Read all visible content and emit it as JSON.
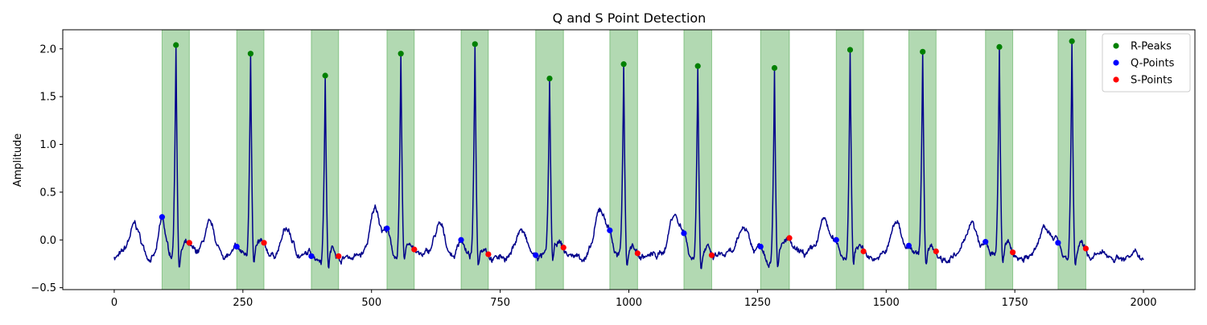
{
  "chart_data": {
    "type": "line",
    "title": "Q and S Point Detection",
    "xlabel": "",
    "ylabel": "Amplitude",
    "xlim": [
      -100,
      2100
    ],
    "ylim": [
      -0.52,
      2.2
    ],
    "x_ticks": [
      0,
      250,
      500,
      750,
      1000,
      1250,
      1500,
      1750,
      2000
    ],
    "y_ticks": [
      -0.5,
      0.0,
      0.5,
      1.0,
      1.5,
      2.0
    ],
    "y_tick_labels": [
      "−0.5",
      "0.0",
      "0.5",
      "1.0",
      "1.5",
      "2.0"
    ],
    "grid": false,
    "legend_position": "top-right",
    "colors": {
      "signal": "#00008b",
      "r_peaks": "#008000",
      "q_points": "#0000ff",
      "s_points": "#ff0000",
      "window": "#008000"
    },
    "highlight_windows": [
      [
        93,
        146
      ],
      [
        238,
        291
      ],
      [
        383,
        436
      ],
      [
        530,
        583
      ],
      [
        674,
        727
      ],
      [
        819,
        873
      ],
      [
        963,
        1017
      ],
      [
        1107,
        1161
      ],
      [
        1256,
        1312
      ],
      [
        1403,
        1456
      ],
      [
        1544,
        1597
      ],
      [
        1693,
        1746
      ],
      [
        1834,
        1888
      ]
    ],
    "beats": [
      {
        "r_x": 120,
        "r_y": 2.04,
        "q_x": 93,
        "q_y": 0.24,
        "s_x": 146,
        "s_y": -0.03,
        "t_x": 40,
        "t_y": 0.1
      },
      {
        "r_x": 265,
        "r_y": 1.95,
        "q_x": 238,
        "q_y": -0.07,
        "s_x": 291,
        "s_y": -0.03,
        "t_x": 185,
        "t_y": 0.08
      },
      {
        "r_x": 410,
        "r_y": 1.72,
        "q_x": 383,
        "q_y": -0.17,
        "s_x": 436,
        "s_y": -0.17,
        "t_x": 335,
        "t_y": 0.07
      },
      {
        "r_x": 557,
        "r_y": 1.95,
        "q_x": 530,
        "q_y": 0.12,
        "s_x": 583,
        "s_y": -0.1,
        "t_x": 508,
        "t_y": 0.29
      },
      {
        "r_x": 701,
        "r_y": 2.05,
        "q_x": 674,
        "q_y": 0.0,
        "s_x": 727,
        "s_y": -0.15,
        "t_x": 632,
        "t_y": 0.1
      },
      {
        "r_x": 846,
        "r_y": 1.69,
        "q_x": 819,
        "q_y": -0.16,
        "s_x": 873,
        "s_y": -0.08,
        "t_x": 790,
        "t_y": 0.08
      },
      {
        "r_x": 990,
        "r_y": 1.84,
        "q_x": 963,
        "q_y": 0.1,
        "s_x": 1017,
        "s_y": -0.14,
        "t_x": 945,
        "t_y": 0.27
      },
      {
        "r_x": 1134,
        "r_y": 1.82,
        "q_x": 1107,
        "q_y": 0.07,
        "s_x": 1161,
        "s_y": -0.16,
        "t_x": 1088,
        "t_y": 0.25
      },
      {
        "r_x": 1283,
        "r_y": 1.8,
        "q_x": 1256,
        "q_y": -0.07,
        "s_x": 1312,
        "s_y": 0.02,
        "t_x": 1225,
        "t_y": 0.1
      },
      {
        "r_x": 1430,
        "r_y": 1.99,
        "q_x": 1403,
        "q_y": 0.0,
        "s_x": 1456,
        "s_y": -0.12,
        "t_x": 1380,
        "t_y": 0.16
      },
      {
        "r_x": 1571,
        "r_y": 1.97,
        "q_x": 1544,
        "q_y": -0.06,
        "s_x": 1597,
        "s_y": -0.12,
        "t_x": 1520,
        "t_y": 0.15
      },
      {
        "r_x": 1720,
        "r_y": 2.02,
        "q_x": 1693,
        "q_y": -0.02,
        "s_x": 1746,
        "s_y": -0.13,
        "t_x": 1665,
        "t_y": 0.15
      },
      {
        "r_x": 1861,
        "r_y": 2.08,
        "q_x": 1834,
        "q_y": -0.03,
        "s_x": 1888,
        "s_y": -0.09,
        "t_x": 1810,
        "t_y": 0.14
      }
    ],
    "signal_range": [
      0,
      2000
    ],
    "series": [
      {
        "name": "R-Peaks",
        "marker": "circle",
        "color": "#008000"
      },
      {
        "name": "Q-Points",
        "marker": "circle",
        "color": "#0000ff"
      },
      {
        "name": "S-Points",
        "marker": "circle",
        "color": "#ff0000"
      }
    ]
  }
}
